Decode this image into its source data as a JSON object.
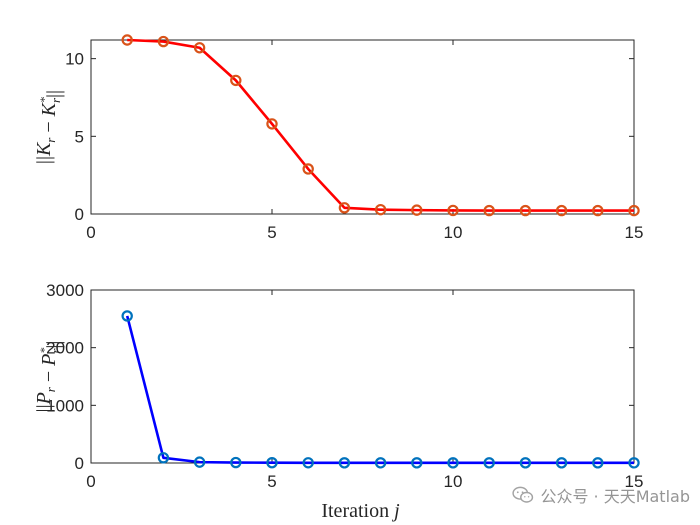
{
  "chart_data": [
    {
      "type": "line",
      "ylabel_math": "||K_r − K_r*||",
      "xlabel": "",
      "xlim": [
        0,
        15
      ],
      "ylim": [
        0,
        11.2
      ],
      "xticks": [
        0,
        5,
        10,
        15
      ],
      "yticks": [
        0,
        5,
        10
      ],
      "grid": false,
      "line_color": "#ff0000",
      "marker_color": "#d95319",
      "series": [
        {
          "x": [
            1,
            2,
            3,
            4,
            5,
            6,
            7,
            8,
            9,
            10,
            11,
            12,
            13,
            14,
            15
          ],
          "values": [
            11.2,
            11.1,
            10.7,
            8.6,
            5.8,
            2.9,
            0.4,
            0.28,
            0.25,
            0.23,
            0.22,
            0.22,
            0.22,
            0.22,
            0.22
          ]
        }
      ]
    },
    {
      "type": "line",
      "ylabel_math": "||P_r − P_r*||",
      "xlabel": "Iteration j",
      "xlim": [
        0,
        15
      ],
      "ylim": [
        0,
        3000
      ],
      "xticks": [
        0,
        5,
        10,
        15
      ],
      "yticks": [
        0,
        1000,
        2000,
        3000
      ],
      "grid": false,
      "line_color": "#0000ff",
      "marker_color": "#0072bd",
      "series": [
        {
          "x": [
            1,
            2,
            3,
            4,
            5,
            6,
            7,
            8,
            9,
            10,
            11,
            12,
            13,
            14,
            15
          ],
          "values": [
            2550,
            90,
            15,
            8,
            5,
            4,
            3,
            3,
            3,
            3,
            3,
            3,
            3,
            3,
            3
          ]
        }
      ]
    }
  ],
  "watermark": {
    "text": "公众号 · 天天Matlab",
    "icon": "wechat-icon"
  }
}
